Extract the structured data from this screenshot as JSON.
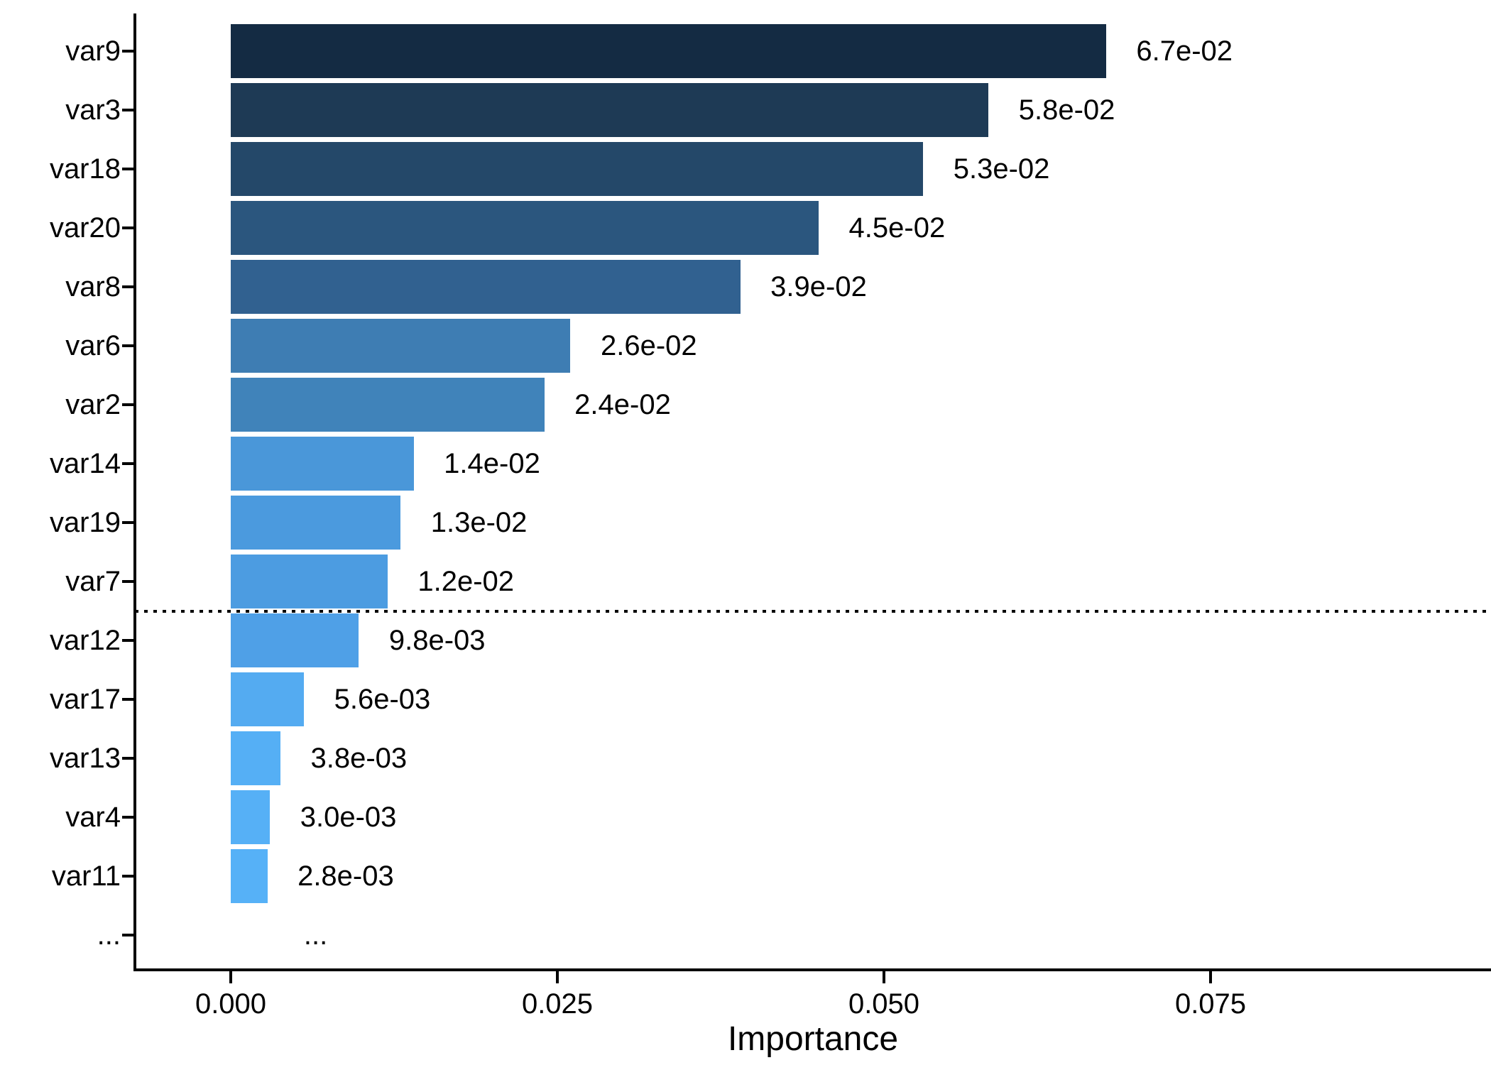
{
  "chart_data": {
    "type": "bar",
    "orientation": "horizontal",
    "title": "",
    "xlabel": "Importance",
    "ylabel": "",
    "categories": [
      "var9",
      "var3",
      "var18",
      "var20",
      "var8",
      "var6",
      "var2",
      "var14",
      "var19",
      "var7",
      "var12",
      "var17",
      "var13",
      "var4",
      "var11",
      "..."
    ],
    "values": [
      0.067,
      0.058,
      0.053,
      0.045,
      0.039,
      0.026,
      0.024,
      0.014,
      0.013,
      0.012,
      0.0098,
      0.0056,
      0.0038,
      0.003,
      0.0028,
      null
    ],
    "value_labels": [
      "6.7e-02",
      "5.8e-02",
      "5.3e-02",
      "4.5e-02",
      "3.9e-02",
      "2.6e-02",
      "2.4e-02",
      "1.4e-02",
      "1.3e-02",
      "1.2e-02",
      "9.8e-03",
      "5.6e-03",
      "3.8e-03",
      "3.0e-03",
      "2.8e-03",
      "..."
    ],
    "bar_colors": [
      "#142B43",
      "#1E3A55",
      "#244869",
      "#2B567E",
      "#316190",
      "#3E7DB3",
      "#4083BA",
      "#4A97D9",
      "#4B9ADE",
      "#4C9CE1",
      "#4FA0E7",
      "#54ABF1",
      "#55AFF5",
      "#56B0F6",
      "#56B1F7",
      null
    ],
    "x_ticks": {
      "values": [
        0,
        0.025,
        0.05,
        0.075
      ],
      "labels": [
        "0.000",
        "0.025",
        "0.050",
        "0.075"
      ]
    },
    "xlim": [
      -0.0073,
      0.0954
    ],
    "grid": false,
    "legend": false,
    "threshold_line": {
      "style": "dotted",
      "color": "#000000",
      "between_categories": [
        "var7",
        "var12"
      ]
    },
    "colors": {
      "background": "#FFFFFF",
      "axis": "#000000",
      "text": "#000000",
      "gradient_high_importance": "#142B43",
      "gradient_low_importance": "#56B1F7"
    }
  }
}
